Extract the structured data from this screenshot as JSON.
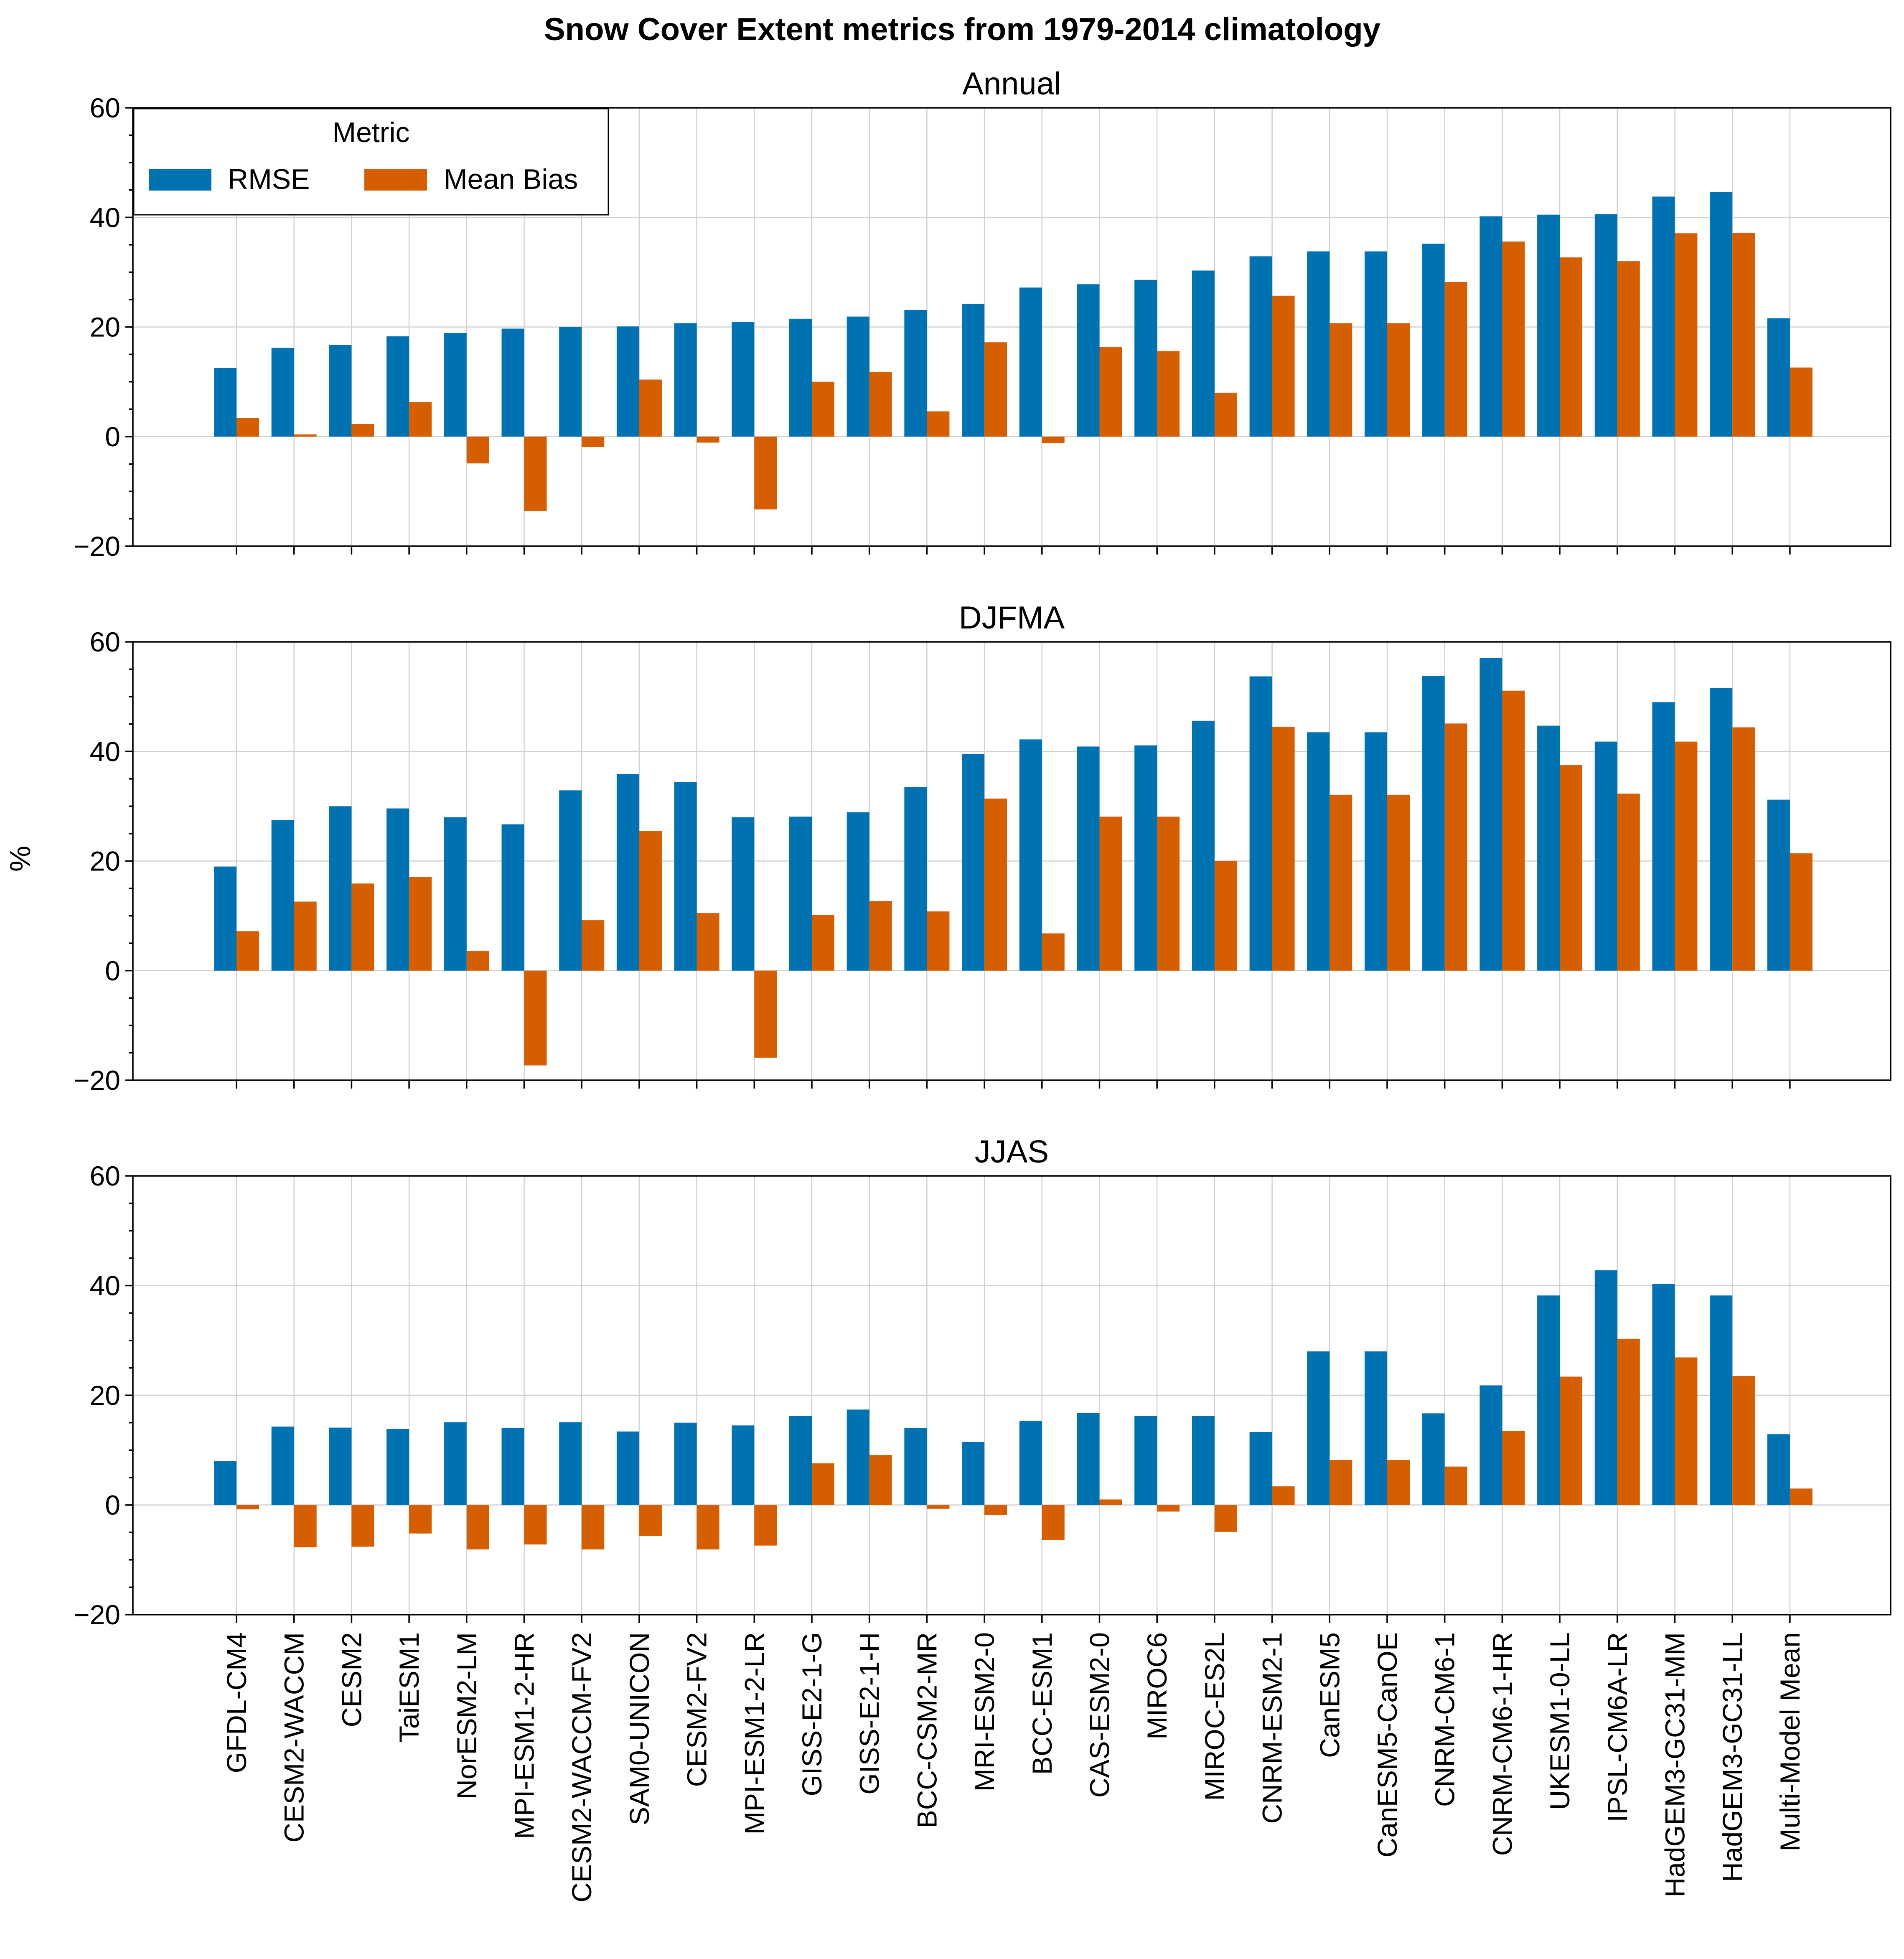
{
  "suptitle": "Snow Cover Extent metrics from 1979-2014 climatology",
  "ylabel": "%",
  "legend": {
    "title": "Metric",
    "rmse": "RMSE",
    "bias": "Mean Bias"
  },
  "colors": {
    "rmse": "#0072B2",
    "bias": "#D55E00"
  },
  "chart_data": [
    {
      "type": "bar",
      "title": "Annual",
      "ylim": [
        -20,
        60
      ],
      "yticks": [
        -20,
        0,
        20,
        40,
        60
      ],
      "grid": true,
      "legend_position": "upper-left",
      "categories": [
        "GFDL-CM4",
        "CESM2-WACCM",
        "CESM2",
        "TaiESM1",
        "NorESM2-LM",
        "MPI-ESM1-2-HR",
        "CESM2-WACCM-FV2",
        "SAM0-UNICON",
        "CESM2-FV2",
        "MPI-ESM1-2-LR",
        "GISS-E2-1-G",
        "GISS-E2-1-H",
        "BCC-CSM2-MR",
        "MRI-ESM2-0",
        "BCC-ESM1",
        "CAS-ESM2-0",
        "MIROC6",
        "MIROC-ES2L",
        "CNRM-ESM2-1",
        "CanESM5",
        "CanESM5-CanOE",
        "CNRM-CM6-1",
        "CNRM-CM6-1-HR",
        "UKESM1-0-LL",
        "IPSL-CM6A-LR",
        "HadGEM3-GC31-MM",
        "HadGEM3-GC31-LL",
        "Multi-Model Mean"
      ],
      "series": [
        {
          "name": "RMSE",
          "values": [
            12.5,
            16.2,
            16.7,
            18.3,
            18.9,
            19.7,
            20.0,
            20.1,
            20.7,
            20.9,
            21.5,
            21.9,
            23.1,
            24.2,
            27.2,
            27.8,
            28.6,
            30.3,
            32.9,
            33.8,
            33.8,
            35.2,
            40.2,
            40.5,
            40.6,
            43.8,
            44.6,
            21.6
          ]
        },
        {
          "name": "Mean Bias",
          "values": [
            3.4,
            0.4,
            2.3,
            6.3,
            -4.9,
            -13.6,
            -1.9,
            10.4,
            -1.1,
            -13.3,
            10.0,
            11.8,
            4.6,
            17.2,
            -1.2,
            16.3,
            15.6,
            8.0,
            25.7,
            20.7,
            20.7,
            28.2,
            35.6,
            32.7,
            32.0,
            37.1,
            37.2,
            12.6
          ]
        }
      ]
    },
    {
      "type": "bar",
      "title": "DJFMA",
      "ylim": [
        -20,
        60
      ],
      "yticks": [
        -20,
        0,
        20,
        40,
        60
      ],
      "grid": true,
      "categories": [
        "GFDL-CM4",
        "CESM2-WACCM",
        "CESM2",
        "TaiESM1",
        "NorESM2-LM",
        "MPI-ESM1-2-HR",
        "CESM2-WACCM-FV2",
        "SAM0-UNICON",
        "CESM2-FV2",
        "MPI-ESM1-2-LR",
        "GISS-E2-1-G",
        "GISS-E2-1-H",
        "BCC-CSM2-MR",
        "MRI-ESM2-0",
        "BCC-ESM1",
        "CAS-ESM2-0",
        "MIROC6",
        "MIROC-ES2L",
        "CNRM-ESM2-1",
        "CanESM5",
        "CanESM5-CanOE",
        "CNRM-CM6-1",
        "CNRM-CM6-1-HR",
        "UKESM1-0-LL",
        "IPSL-CM6A-LR",
        "HadGEM3-GC31-MM",
        "HadGEM3-GC31-LL",
        "Multi-Model Mean"
      ],
      "series": [
        {
          "name": "RMSE",
          "values": [
            19.0,
            27.5,
            30.0,
            29.6,
            28.0,
            26.7,
            32.9,
            35.9,
            34.4,
            28.0,
            28.1,
            28.9,
            33.5,
            39.5,
            42.2,
            40.9,
            41.1,
            45.6,
            53.7,
            43.5,
            43.5,
            53.8,
            57.1,
            44.7,
            41.8,
            49.0,
            51.6,
            31.2
          ]
        },
        {
          "name": "Mean Bias",
          "values": [
            7.2,
            12.6,
            15.9,
            17.1,
            3.6,
            -17.3,
            9.2,
            25.5,
            10.5,
            -15.9,
            10.2,
            12.7,
            10.8,
            31.4,
            6.8,
            28.1,
            28.1,
            20.0,
            44.5,
            32.1,
            32.1,
            45.1,
            51.1,
            37.5,
            32.3,
            41.8,
            44.4,
            21.4
          ]
        }
      ]
    },
    {
      "type": "bar",
      "title": "JJAS",
      "ylim": [
        -20,
        60
      ],
      "yticks": [
        -20,
        0,
        20,
        40,
        60
      ],
      "grid": true,
      "categories": [
        "GFDL-CM4",
        "CESM2-WACCM",
        "CESM2",
        "TaiESM1",
        "NorESM2-LM",
        "MPI-ESM1-2-HR",
        "CESM2-WACCM-FV2",
        "SAM0-UNICON",
        "CESM2-FV2",
        "MPI-ESM1-2-LR",
        "GISS-E2-1-G",
        "GISS-E2-1-H",
        "BCC-CSM2-MR",
        "MRI-ESM2-0",
        "BCC-ESM1",
        "CAS-ESM2-0",
        "MIROC6",
        "MIROC-ES2L",
        "CNRM-ESM2-1",
        "CanESM5",
        "CanESM5-CanOE",
        "CNRM-CM6-1",
        "CNRM-CM6-1-HR",
        "UKESM1-0-LL",
        "IPSL-CM6A-LR",
        "HadGEM3-GC31-MM",
        "HadGEM3-GC31-LL",
        "Multi-Model Mean"
      ],
      "series": [
        {
          "name": "RMSE",
          "values": [
            8.0,
            14.3,
            14.1,
            13.9,
            15.1,
            14.0,
            15.1,
            13.4,
            15.0,
            14.5,
            16.2,
            17.4,
            14.0,
            11.5,
            15.3,
            16.8,
            16.2,
            16.2,
            13.3,
            28.0,
            28.0,
            16.7,
            21.8,
            38.2,
            42.8,
            40.3,
            38.2,
            12.9
          ]
        },
        {
          "name": "Mean Bias",
          "values": [
            -0.8,
            -7.7,
            -7.6,
            -5.2,
            -8.1,
            -7.2,
            -8.1,
            -5.6,
            -8.1,
            -7.4,
            7.6,
            9.1,
            -0.7,
            -1.8,
            -6.4,
            1.0,
            -1.2,
            -4.9,
            3.4,
            8.2,
            8.2,
            7.0,
            13.5,
            23.4,
            30.3,
            26.9,
            23.5,
            3.0
          ]
        }
      ]
    }
  ]
}
